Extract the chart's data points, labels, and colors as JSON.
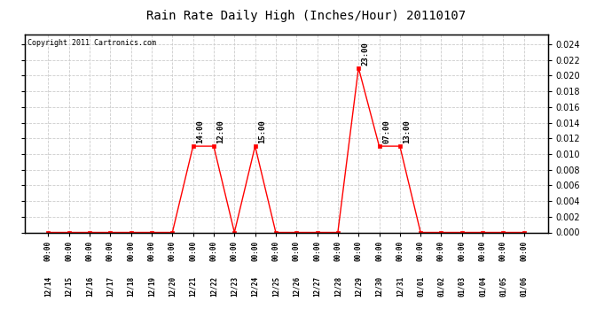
{
  "title": "Rain Rate Daily High (Inches/Hour) 20110107",
  "copyright": "Copyright 2011 Cartronics.com",
  "background_color": "#ffffff",
  "plot_bg_color": "#ffffff",
  "grid_color": "#cccccc",
  "line_color": "#ff0000",
  "marker_color": "#ff0000",
  "ylim": [
    0.0,
    0.0252
  ],
  "yticks": [
    0.0,
    0.002,
    0.004,
    0.006,
    0.008,
    0.01,
    0.012,
    0.014,
    0.016,
    0.018,
    0.02,
    0.022,
    0.024
  ],
  "data_points": [
    {
      "date": "2010-12-14",
      "value": 0.0,
      "label": null
    },
    {
      "date": "2010-12-15",
      "value": 0.0,
      "label": null
    },
    {
      "date": "2010-12-16",
      "value": 0.0,
      "label": null
    },
    {
      "date": "2010-12-17",
      "value": 0.0,
      "label": null
    },
    {
      "date": "2010-12-18",
      "value": 0.0,
      "label": null
    },
    {
      "date": "2010-12-19",
      "value": 0.0,
      "label": null
    },
    {
      "date": "2010-12-20",
      "value": 0.0,
      "label": null
    },
    {
      "date": "2010-12-21",
      "value": 0.011,
      "label": "14:00"
    },
    {
      "date": "2010-12-22",
      "value": 0.011,
      "label": "12:00"
    },
    {
      "date": "2010-12-23",
      "value": 0.0,
      "label": null
    },
    {
      "date": "2010-12-24",
      "value": 0.011,
      "label": "15:00"
    },
    {
      "date": "2010-12-25",
      "value": 0.0,
      "label": null
    },
    {
      "date": "2010-12-26",
      "value": 0.0,
      "label": null
    },
    {
      "date": "2010-12-27",
      "value": 0.0,
      "label": null
    },
    {
      "date": "2010-12-28",
      "value": 0.0,
      "label": null
    },
    {
      "date": "2010-12-29",
      "value": 0.021,
      "label": "23:00"
    },
    {
      "date": "2010-12-30",
      "value": 0.011,
      "label": "07:00"
    },
    {
      "date": "2010-12-31",
      "value": 0.011,
      "label": "13:00"
    },
    {
      "date": "2011-01-01",
      "value": 0.0,
      "label": null
    },
    {
      "date": "2011-01-02",
      "value": 0.0,
      "label": null
    },
    {
      "date": "2011-01-03",
      "value": 0.0,
      "label": null
    },
    {
      "date": "2011-01-04",
      "value": 0.0,
      "label": null
    },
    {
      "date": "2011-01-05",
      "value": 0.0,
      "label": null
    },
    {
      "date": "2011-01-06",
      "value": 0.0,
      "label": null
    }
  ],
  "xticklabels": [
    "12/14",
    "12/15",
    "12/16",
    "12/17",
    "12/18",
    "12/19",
    "12/20",
    "12/21",
    "12/22",
    "12/23",
    "12/24",
    "12/25",
    "12/26",
    "12/27",
    "12/28",
    "12/29",
    "12/30",
    "12/31",
    "01/01",
    "01/02",
    "01/03",
    "01/04",
    "01/05",
    "01/06"
  ],
  "xlabel_time": "00:00",
  "label_fontsize": 5.5,
  "annot_fontsize": 6.5,
  "title_fontsize": 10,
  "copyright_fontsize": 6,
  "ytick_fontsize": 7
}
